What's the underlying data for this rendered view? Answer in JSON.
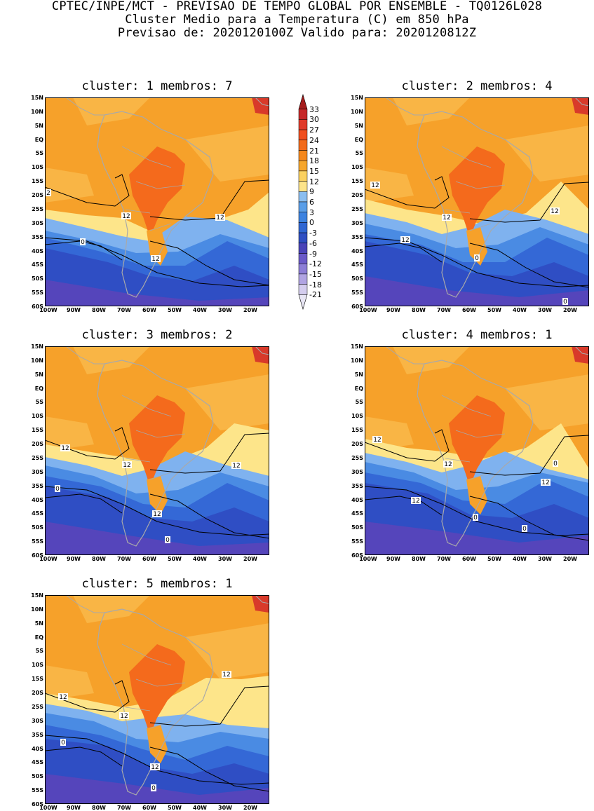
{
  "header": {
    "line1": "CPTEC/INPE/MCT - PREVISAO DE TEMPO GLOBAL POR ENSEMBLE - TQ0126L028",
    "line2": "Cluster Medio para a Temperatura (C) em 850 hPa",
    "line3": "Previsao de: 2020120100Z   Valido para: 2020120812Z"
  },
  "panels": [
    {
      "title": "cluster: 1   membros: 7",
      "contours": [
        "2",
        "12",
        "12",
        "12",
        "0"
      ]
    },
    {
      "title": "cluster: 2   membros: 4",
      "contours": [
        "12",
        "12",
        "12",
        "0",
        "12",
        "0"
      ]
    },
    {
      "title": "cluster: 3   membros: 2",
      "contours": [
        "12",
        "12",
        "12",
        "0",
        "12",
        "0"
      ]
    },
    {
      "title": "cluster: 4   membros: 1",
      "contours": [
        "12",
        "12",
        "0",
        "12",
        "0",
        "12",
        "0"
      ]
    },
    {
      "title": "cluster: 5   membros: 1",
      "contours": [
        "12",
        "12",
        "12",
        "0",
        "12",
        "0"
      ]
    }
  ],
  "axes": {
    "lat_labels": [
      "15N",
      "10N",
      "5N",
      "EQ",
      "5S",
      "10S",
      "15S",
      "20S",
      "25S",
      "30S",
      "35S",
      "40S",
      "45S",
      "50S",
      "55S",
      "60S"
    ],
    "lon_labels": [
      "100W",
      "90W",
      "80W",
      "70W",
      "60W",
      "50W",
      "40W",
      "30W",
      "20W"
    ]
  },
  "colorbar": {
    "labels": [
      "33",
      "30",
      "27",
      "24",
      "21",
      "18",
      "15",
      "12",
      "9",
      "6",
      "3",
      "0",
      "-3",
      "-6",
      "-9",
      "-12",
      "-15",
      "-18",
      "-21"
    ],
    "colors": [
      "#a51d1d",
      "#c62828",
      "#e03a2a",
      "#f04e1e",
      "#f26a1a",
      "#f5881c",
      "#f6a62c",
      "#fbd160",
      "#fde48a",
      "#8bbef0",
      "#5a9ee8",
      "#3c82e0",
      "#2f66d2",
      "#2f4fc2",
      "#4a44b8",
      "#6a5ac8",
      "#8c7ed6",
      "#b0a4e2",
      "#d4cdee",
      "#e8e6f4"
    ]
  },
  "palette": {
    "deep_orange": "#f46a1c",
    "orange": "#f6a12a",
    "light_orange": "#f9b545",
    "yellow": "#fde58a",
    "light_blue": "#7fb2ef",
    "blue": "#4a8be3",
    "mid_blue": "#3468d6",
    "dark_blue": "#2f4ec4",
    "purple": "#5545bb",
    "red": "#d83a2a",
    "coast": "#a9a9a9",
    "contour": "#000000"
  }
}
